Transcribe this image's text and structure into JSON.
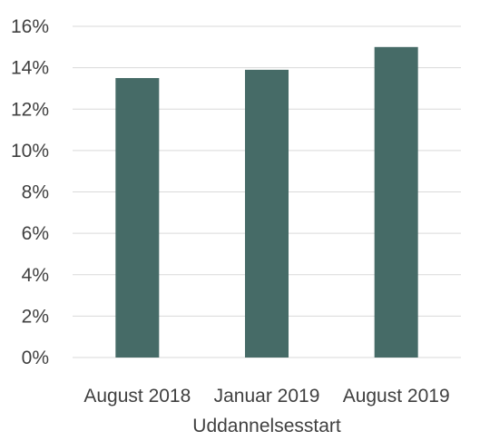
{
  "chart_data": {
    "type": "bar",
    "categories": [
      "August 2018",
      "Januar 2019",
      "August 2019"
    ],
    "values": [
      13.5,
      13.9,
      15.0
    ],
    "title": "",
    "xlabel": "Uddannelsesstart",
    "ylabel": "",
    "ylim": [
      0,
      16
    ],
    "ytick_step": 2,
    "ytick_format": "percent",
    "grid": true,
    "legend": "none",
    "colors": {
      "bar": "#466b67",
      "grid": "#d9d9d9",
      "text": "#404040"
    }
  }
}
